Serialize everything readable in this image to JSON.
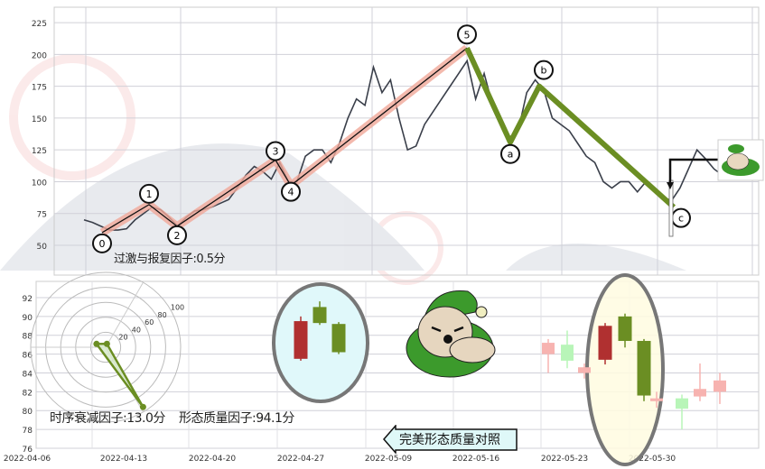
{
  "chart_data": [
    {
      "type": "line",
      "title": "",
      "ylim": [
        30,
        240
      ],
      "yticks": [
        50,
        75,
        100,
        125,
        150,
        175,
        200,
        225
      ],
      "grid": true,
      "price": [
        70,
        68,
        65,
        62,
        62,
        63,
        70,
        75,
        80,
        78,
        72,
        65,
        72,
        77,
        78,
        80,
        83,
        86,
        95,
        105,
        112,
        108,
        102,
        115,
        100,
        100,
        120,
        125,
        125,
        115,
        130,
        150,
        165,
        160,
        190,
        170,
        180,
        150,
        125,
        128,
        145,
        155,
        165,
        175,
        185,
        195,
        165,
        185,
        160,
        145,
        135,
        140,
        170,
        180,
        172,
        150,
        145,
        140,
        130,
        120,
        115,
        100,
        95,
        100,
        100,
        92,
        100,
        95,
        88,
        85,
        95,
        110,
        125,
        118,
        110,
        105
      ],
      "impulse_wave": [
        {
          "label": "0",
          "value": 60
        },
        {
          "label": "1",
          "value": 82
        },
        {
          "label": "2",
          "value": 65
        },
        {
          "label": "3",
          "value": 117
        },
        {
          "label": "4",
          "value": 97
        },
        {
          "label": "5",
          "value": 205
        }
      ],
      "corrective_wave": [
        {
          "label": "5",
          "value": 205
        },
        {
          "label": "a",
          "value": 131
        },
        {
          "label": "b",
          "value": 175
        },
        {
          "label": "c",
          "value": 80
        }
      ],
      "colors": {
        "impulse": "#f0a898",
        "corrective": "#6b8e23",
        "price": "#3a3f4a"
      }
    },
    {
      "type": "candlestick",
      "ylim": [
        76,
        93
      ],
      "yticks": [
        76,
        78,
        80,
        82,
        84,
        86,
        88,
        90,
        92
      ],
      "xticks": [
        "2022-04-06",
        "2022-04-13",
        "2022-04-20",
        "2022-04-27",
        "2022-05-09",
        "2022-05-16",
        "2022-05-23",
        "2022-05-30"
      ],
      "reference_candles": [
        {
          "open": 85.5,
          "close": 89.5,
          "high": 90,
          "low": 85.3,
          "dir": "up"
        },
        {
          "open": 89.3,
          "close": 91,
          "high": 91.6,
          "low": 89.1,
          "dir": "down"
        },
        {
          "open": 89.2,
          "close": 86.2,
          "high": 89.4,
          "low": 86,
          "dir": "down"
        }
      ],
      "actual_candles": [
        {
          "open": 85.4,
          "close": 89,
          "high": 89.3,
          "low": 84.9,
          "dir": "up"
        },
        {
          "open": 87.4,
          "close": 90,
          "high": 90.3,
          "low": 86.7,
          "dir": "down"
        },
        {
          "open": 87.4,
          "close": 81.6,
          "high": 87.6,
          "low": 81,
          "dir": "down"
        }
      ],
      "context_candles": [
        {
          "open": 86,
          "close": 87.2,
          "high": 87.6,
          "low": 84,
          "dir": "up"
        },
        {
          "open": 87,
          "close": 85.3,
          "high": 88.5,
          "low": 84.5,
          "dir": "down"
        },
        {
          "open": 84,
          "close": 84.6,
          "high": 85,
          "low": 83.4,
          "dir": "up"
        },
        {
          "open": 81,
          "close": 81.3,
          "high": 82,
          "low": 80.3,
          "dir": "up"
        },
        {
          "open": 81.3,
          "close": 80.2,
          "high": 81.7,
          "low": 78,
          "dir": "down"
        },
        {
          "open": 81.5,
          "close": 82.3,
          "high": 85,
          "low": 81,
          "dir": "up"
        },
        {
          "open": 82,
          "close": 83.2,
          "high": 84,
          "low": 80.7,
          "dir": "up"
        }
      ],
      "colors": {
        "up": "#b03030",
        "down": "#6b8e23",
        "context_up": "#f7b3b0",
        "context_down": "#b8f5b8"
      }
    },
    {
      "type": "radar",
      "rticks": [
        20,
        40,
        60,
        80,
        100
      ],
      "values": [
        0.5,
        13.0,
        94.1
      ],
      "color": "#6b8e23"
    }
  ],
  "labels": {
    "excess_factor": "过激与报复因子:0.5分",
    "decay_factor": "时序衰减因子:13.0分",
    "quality_factor": "形态质量因子:94.1分",
    "compare_button": "完美形态质量对照"
  }
}
